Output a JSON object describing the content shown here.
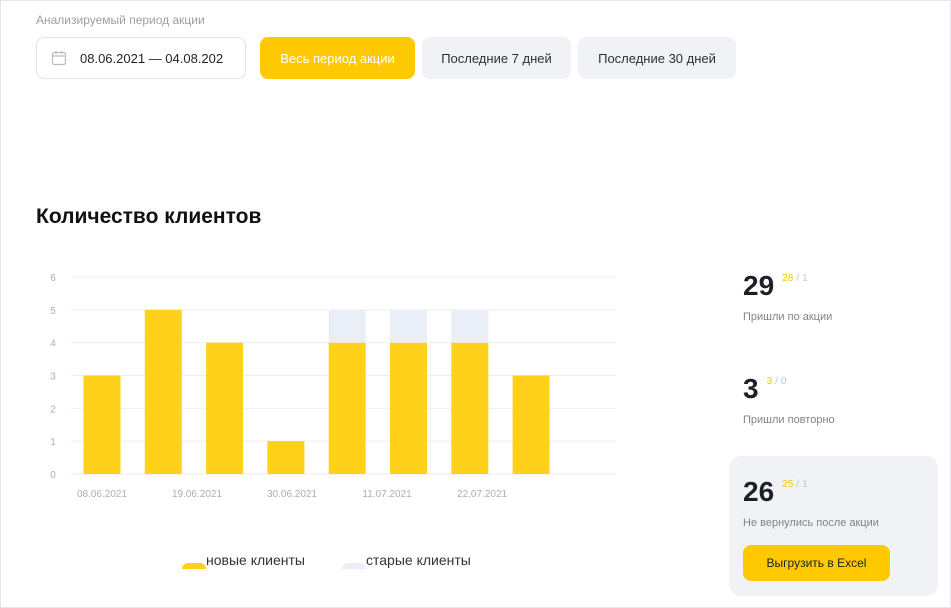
{
  "period": {
    "label": "Анализируемый период акции",
    "date_range": "08.06.2021 — 04.08.202",
    "buttons": {
      "all": "Весь период акции",
      "last7": "Последние 7 дней",
      "last30": "Последние 30 дней"
    },
    "active": "all"
  },
  "chart_title": "Количество клиентов",
  "chart_data": {
    "type": "bar",
    "stacked": true,
    "ylim": [
      0,
      6
    ],
    "yticks": [
      0,
      1,
      2,
      3,
      4,
      5,
      6
    ],
    "x_tick_labels": [
      "08.06.2021",
      "19.06.2021",
      "30.06.2021",
      "11.07.2021",
      "22.07.2021"
    ],
    "series": [
      {
        "name": "новые клиенты",
        "color": "#ffd11a",
        "values": [
          3,
          5,
          4,
          1,
          4,
          4,
          4,
          3
        ]
      },
      {
        "name": "старые клиенты",
        "color": "#e9eef7",
        "values": [
          0,
          0,
          0,
          0,
          1,
          1,
          1,
          0
        ]
      }
    ],
    "grid": true,
    "legend_position": "bottom"
  },
  "stats": [
    {
      "total": "29",
      "new": "28",
      "old": "1",
      "label": "Пришли по акции"
    },
    {
      "total": "3",
      "new": "3",
      "old": "0",
      "label": "Пришли повторно"
    },
    {
      "total": "26",
      "new": "25",
      "old": "1",
      "label": "Не вернулись после акции"
    }
  ],
  "export_label": "Выгрузить в Excel",
  "colors": {
    "accent": "#ffc900",
    "new_clients": "#ffd11a",
    "old_clients": "#e9eef7",
    "button_inactive": "#f0f2f6"
  }
}
